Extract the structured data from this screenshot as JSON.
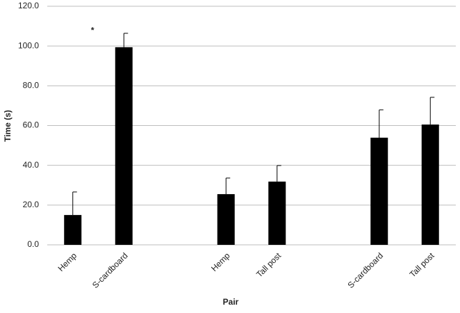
{
  "chart_data": {
    "type": "bar",
    "x_label": "Pair",
    "y_label": "Time (s)",
    "categories": [
      "Hemp",
      "S-cardboard",
      null,
      "Hemp",
      "Tall post",
      null,
      "S-cardboard",
      "Tall post"
    ],
    "values": [
      15,
      99.4,
      null,
      25.5,
      31.8,
      null,
      53.9,
      60.5
    ],
    "errors": [
      11.6,
      7,
      null,
      8.1,
      8.1,
      null,
      14,
      13.7
    ],
    "color": "#000000",
    "annotations": [
      {
        "text": "*",
        "category": 1,
        "value": 109
      }
    ],
    "ylim": [
      0,
      120
    ],
    "yticks": [
      {
        "value": 0,
        "label": "0.0"
      },
      {
        "value": 20,
        "label": "20.0"
      },
      {
        "value": 40,
        "label": "40.0"
      },
      {
        "value": 60,
        "label": "60.0"
      },
      {
        "value": 80,
        "label": "80.0"
      },
      {
        "value": 100,
        "label": "100.0"
      },
      {
        "value": 120,
        "label": "120.0"
      }
    ],
    "grid": true
  }
}
